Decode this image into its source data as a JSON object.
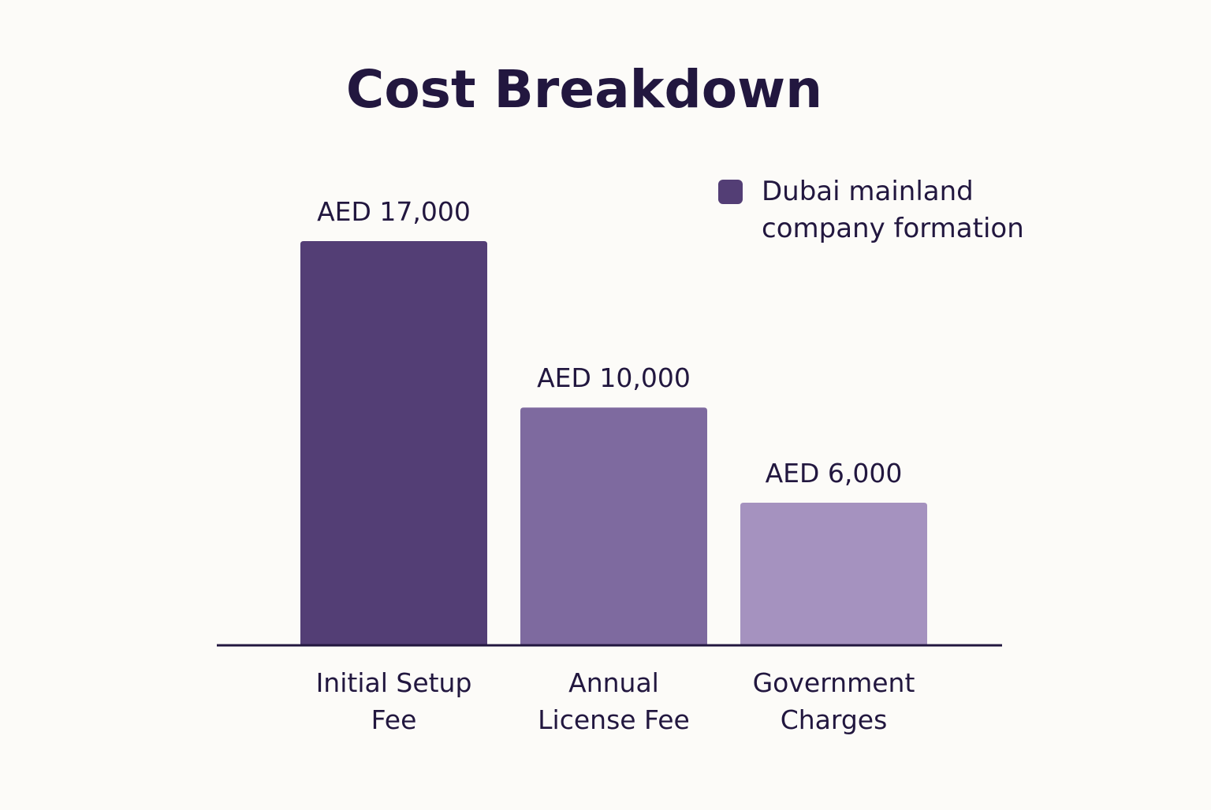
{
  "chart_data": {
    "type": "bar",
    "title": "Cost Breakdown",
    "categories": [
      [
        "Initial Setup",
        "Fee"
      ],
      [
        "Annual",
        "License Fee"
      ],
      [
        "Government",
        "Charges"
      ]
    ],
    "series": [
      {
        "name": "Dubai mainland company formation",
        "legend_lines": [
          "Dubai mainland",
          "company formation"
        ],
        "values": [
          17000,
          10000,
          6000
        ],
        "value_labels": [
          "AED 17,000",
          "AED 10,000",
          "AED 6,000"
        ],
        "colors": [
          "#533e75",
          "#7e6a9f",
          "#a592bf"
        ]
      }
    ],
    "xlabel": "",
    "ylabel": "",
    "ylim": [
      0,
      17000
    ],
    "grid": false,
    "legend_position": "top-right",
    "colors": {
      "text": "#22173f",
      "axis": "#22173f",
      "legend_swatch": "#533e75"
    }
  }
}
